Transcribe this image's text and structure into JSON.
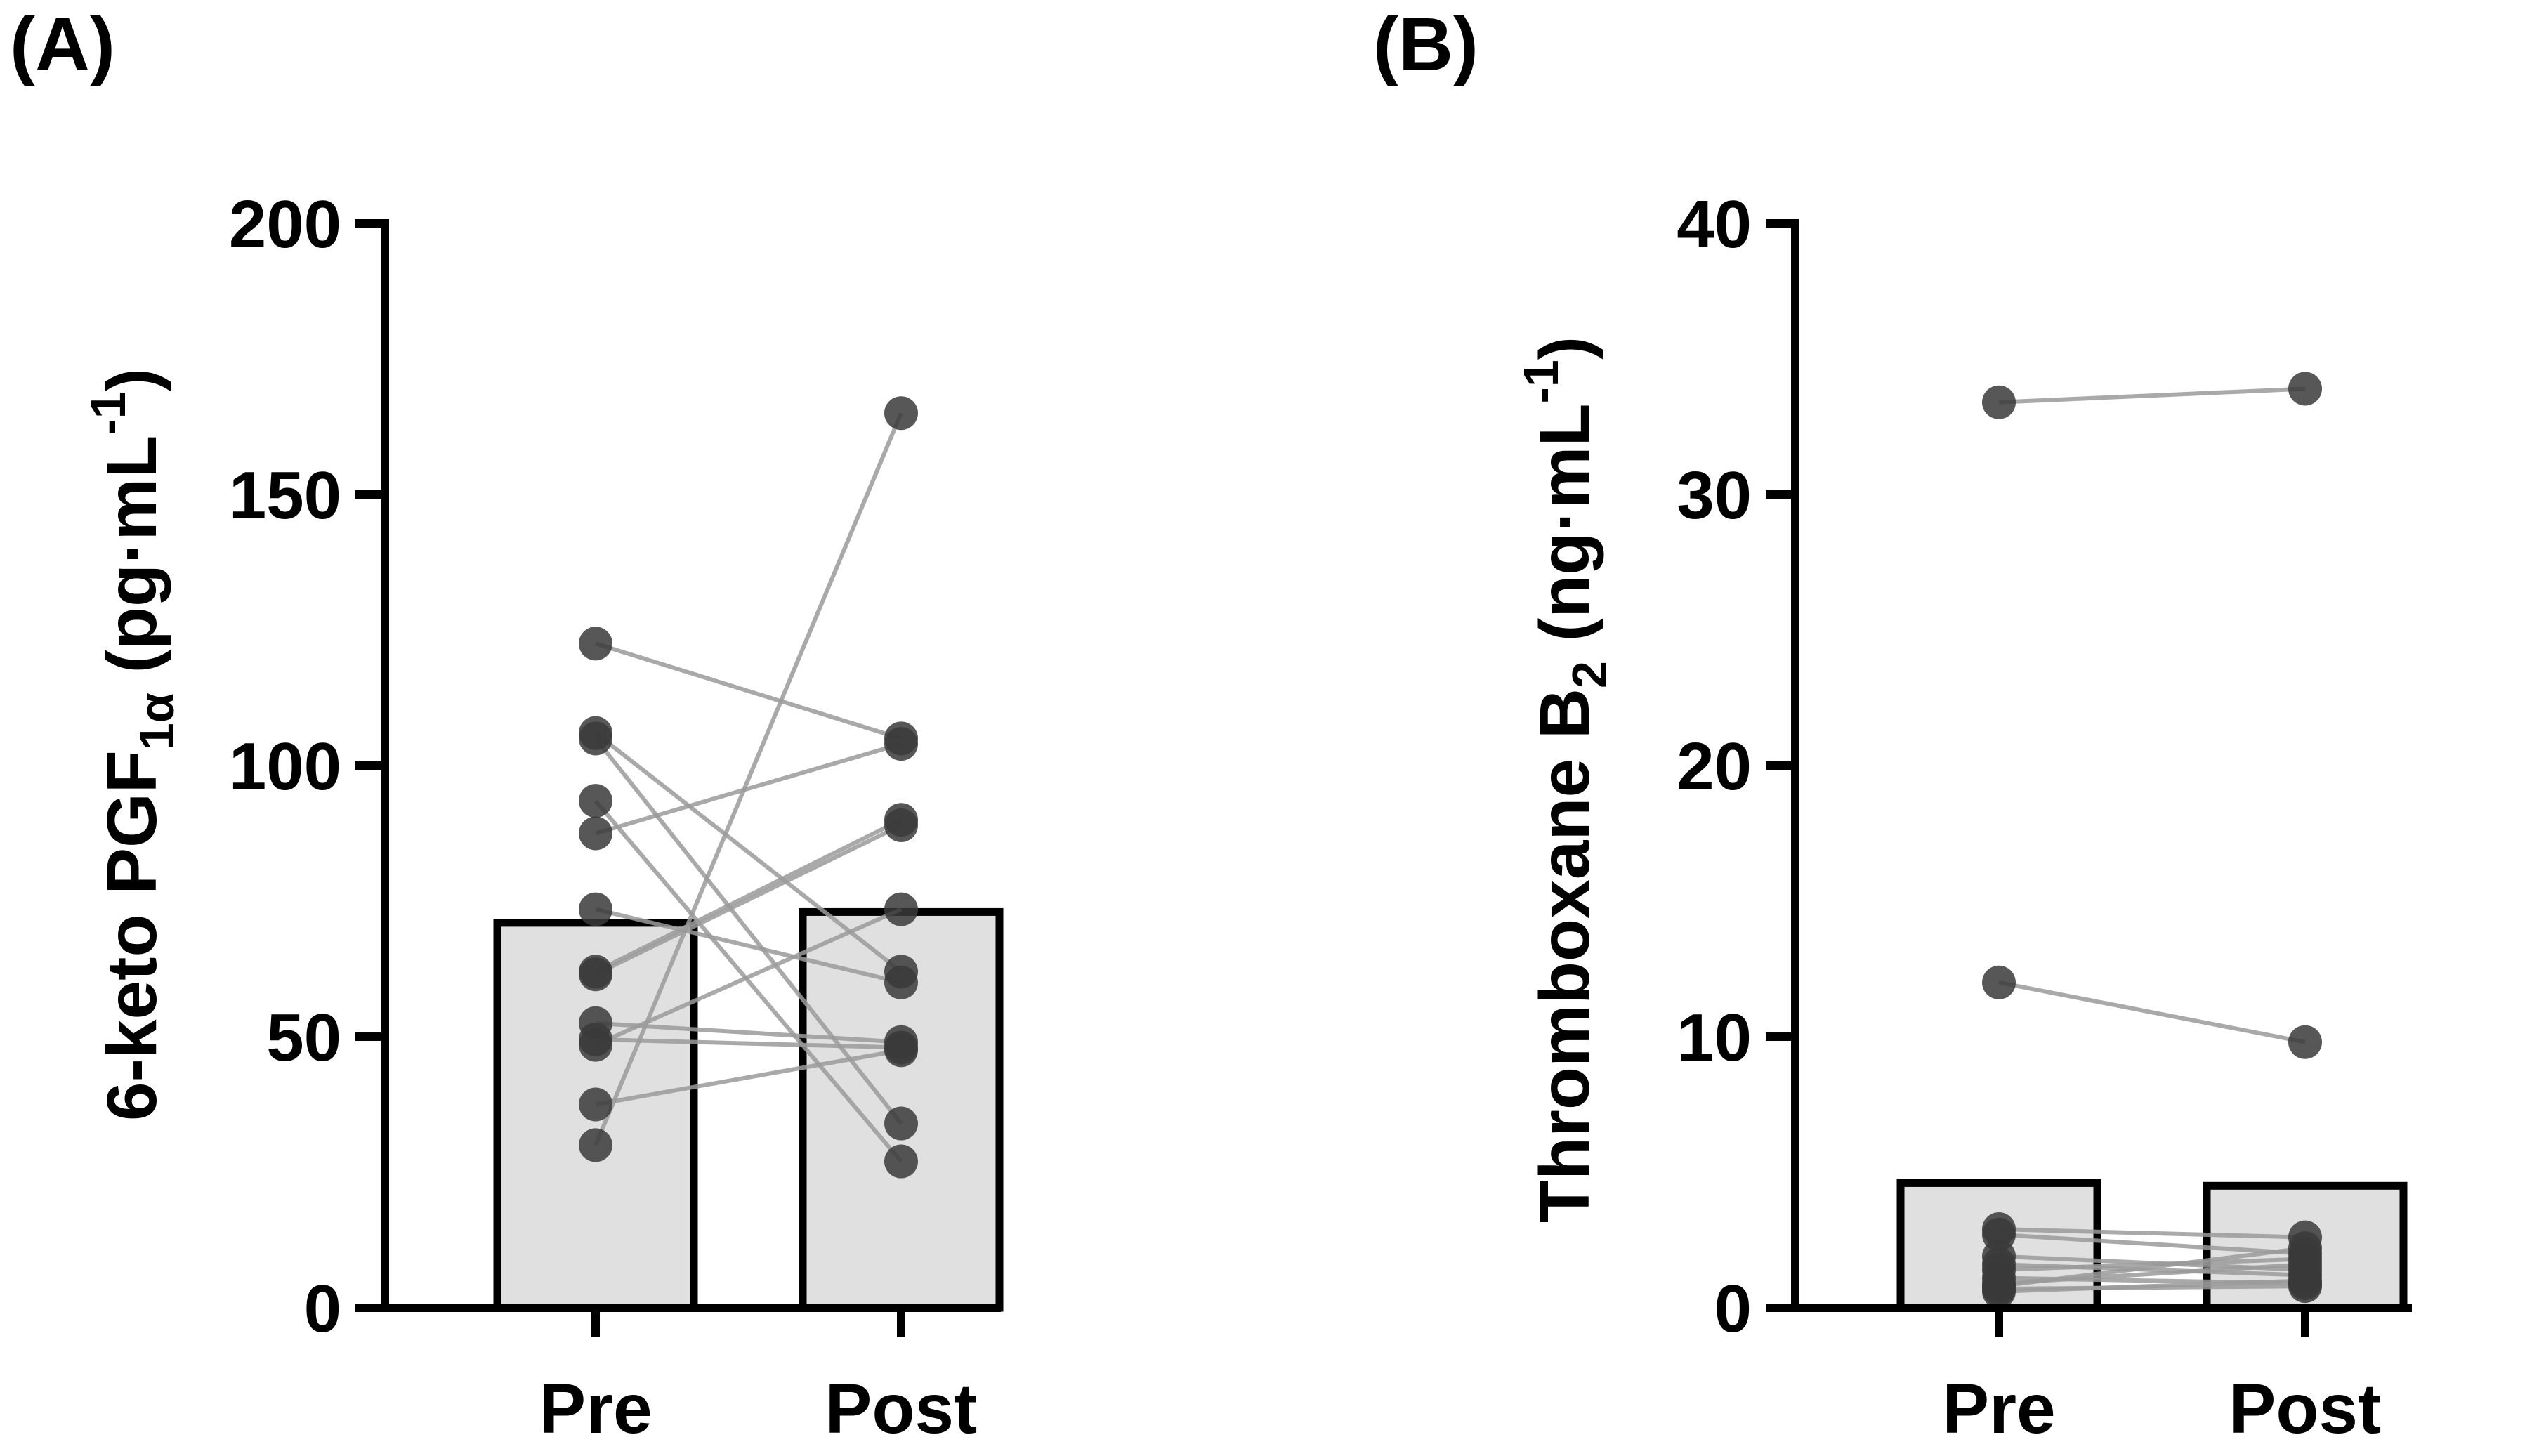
{
  "colors": {
    "bar_fill": "#e0e0e0",
    "axis": "#000000",
    "point": "#3a3a3a",
    "pair_line": "#9a9a9a"
  },
  "chart_data": [
    {
      "panel": "(A)",
      "type": "bar",
      "categories": [
        "Pre",
        "Post"
      ],
      "ylabel_main": "6-keto PGF",
      "ylabel_sub": "1α",
      "ylabel_unit": " (pg·mL",
      "ylabel_sup": "-1",
      "ylabel_close": ")",
      "ylim": [
        0,
        200
      ],
      "yticks": [
        0,
        50,
        100,
        150,
        200
      ],
      "ytick_labels": [
        "0",
        "50",
        "100",
        "150",
        "200"
      ],
      "values": [
        71,
        73
      ],
      "pairs": [
        [
          122.5,
          105
        ],
        [
          106,
          62
        ],
        [
          105,
          34
        ],
        [
          93.5,
          27
        ],
        [
          87.5,
          104
        ],
        [
          73.5,
          60
        ],
        [
          62,
          90
        ],
        [
          61.5,
          89
        ],
        [
          52.5,
          49
        ],
        [
          49.5,
          48
        ],
        [
          48.5,
          73.5
        ],
        [
          37.5,
          47.5
        ],
        [
          30,
          165
        ]
      ]
    },
    {
      "panel": "(B)",
      "type": "bar",
      "categories": [
        "Pre",
        "Post"
      ],
      "ylabel_main": "Thromboxane B",
      "ylabel_sub": "2",
      "ylabel_unit": " (ng·mL",
      "ylabel_sup": "-1",
      "ylabel_close": ")",
      "ylim": [
        0,
        40
      ],
      "yticks": [
        0,
        10,
        20,
        30,
        40
      ],
      "ytick_labels": [
        "0",
        "10",
        "20",
        "30",
        "40"
      ],
      "values": [
        4.6,
        4.5
      ],
      "pairs": [
        [
          33.4,
          33.9
        ],
        [
          12.0,
          9.8
        ],
        [
          2.9,
          2.6
        ],
        [
          2.7,
          2.0
        ],
        [
          1.9,
          1.4
        ],
        [
          1.6,
          1.2
        ],
        [
          1.4,
          1.8
        ],
        [
          1.1,
          0.9
        ],
        [
          0.9,
          1.6
        ],
        [
          0.8,
          2.2
        ],
        [
          0.7,
          0.8
        ],
        [
          0.6,
          1.0
        ]
      ]
    }
  ]
}
